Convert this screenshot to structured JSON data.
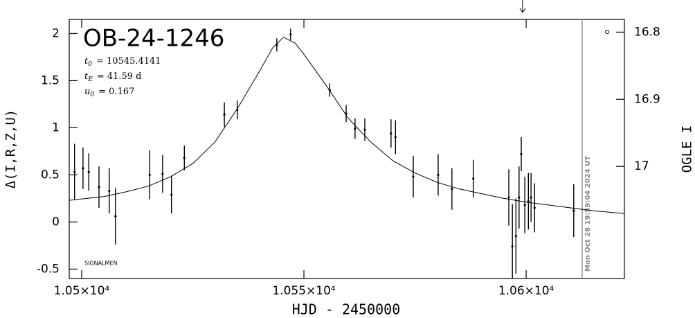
{
  "chart_data": {
    "type": "scatter",
    "title": "OB-24-1246",
    "params": [
      {
        "symbol": "t",
        "subscript": "0",
        "text": "= 10545.4141"
      },
      {
        "symbol": "t",
        "subscript": "E",
        "text": "= 41.59 d"
      },
      {
        "symbol": "u",
        "subscript": "0",
        "text": "= 0.167"
      }
    ],
    "credit": "SIGNALMEN",
    "timestamp": "Mon Oct 28 19:59:04 2024 UT",
    "x_label": "HJD - 2450000",
    "y_label": "Δ(I,R,Z,U)",
    "y2_label": "OGLE I",
    "xlim": [
      10497.2,
      10622.1
    ],
    "xticks": [
      {
        "value": 10500,
        "label": "1.05×10⁴"
      },
      {
        "value": 10550,
        "label": "1.055×10⁴"
      },
      {
        "value": 10600,
        "label": "1.06×10⁴"
      }
    ],
    "ylim": [
      -0.6,
      2.15
    ],
    "yticks": [
      -0.5,
      0,
      0.5,
      1,
      1.5,
      2
    ],
    "y2lim": [
      17.167,
      16.781
    ],
    "y2ticks": [
      16.8,
      16.9,
      17
    ],
    "vline_x": 10612.6,
    "arrow_x": 10599.2,
    "color": "#000000",
    "points": {
      "x": [
        10498.4,
        10500.3,
        10501.6,
        10503.9,
        10506.2,
        10507.6,
        10515.3,
        10518.2,
        10520.2,
        10523.1,
        10532.1,
        10535.0,
        10543.9,
        10547.0,
        10555.8,
        10559.5,
        10561.5,
        10563.7,
        10569.6,
        10570.6,
        10574.6,
        10580.2,
        10583.3,
        10588.1,
        10596.1,
        10596.9,
        10597.7,
        10598.4,
        10598.9,
        10599.7,
        10600.5,
        10601.1,
        10601.9,
        10610.7
      ],
      "values": [
        0.53,
        0.57,
        0.53,
        0.37,
        0.33,
        0.06,
        0.5,
        0.51,
        0.29,
        0.68,
        1.14,
        1.19,
        1.88,
        1.99,
        1.4,
        1.15,
        0.99,
        0.98,
        0.94,
        0.9,
        0.48,
        0.5,
        0.35,
        0.46,
        0.26,
        -0.26,
        -0.15,
        0.26,
        0.72,
        0.18,
        0.22,
        0.26,
        0.15,
        0.12
      ],
      "errors": [
        0.3,
        0.22,
        0.2,
        0.22,
        0.24,
        0.3,
        0.26,
        0.2,
        0.2,
        0.13,
        0.13,
        0.1,
        0.07,
        0.06,
        0.07,
        0.09,
        0.11,
        0.12,
        0.15,
        0.18,
        0.22,
        0.22,
        0.22,
        0.2,
        0.3,
        0.45,
        0.4,
        0.33,
        0.18,
        0.3,
        0.3,
        0.26,
        0.26,
        0.28
      ]
    },
    "model": {
      "x": [
        10497.2,
        10505,
        10510,
        10515,
        10520,
        10525,
        10530,
        10535,
        10540,
        10543,
        10545.4,
        10548,
        10550,
        10555,
        10560,
        10565,
        10570,
        10575,
        10580,
        10585,
        10590,
        10595,
        10600,
        10605,
        10610,
        10615,
        10622.1
      ],
      "values": [
        0.23,
        0.27,
        0.32,
        0.38,
        0.48,
        0.62,
        0.85,
        1.2,
        1.6,
        1.85,
        1.96,
        1.9,
        1.78,
        1.45,
        1.1,
        0.85,
        0.65,
        0.52,
        0.42,
        0.35,
        0.3,
        0.25,
        0.21,
        0.18,
        0.15,
        0.12,
        0.09
      ]
    }
  }
}
